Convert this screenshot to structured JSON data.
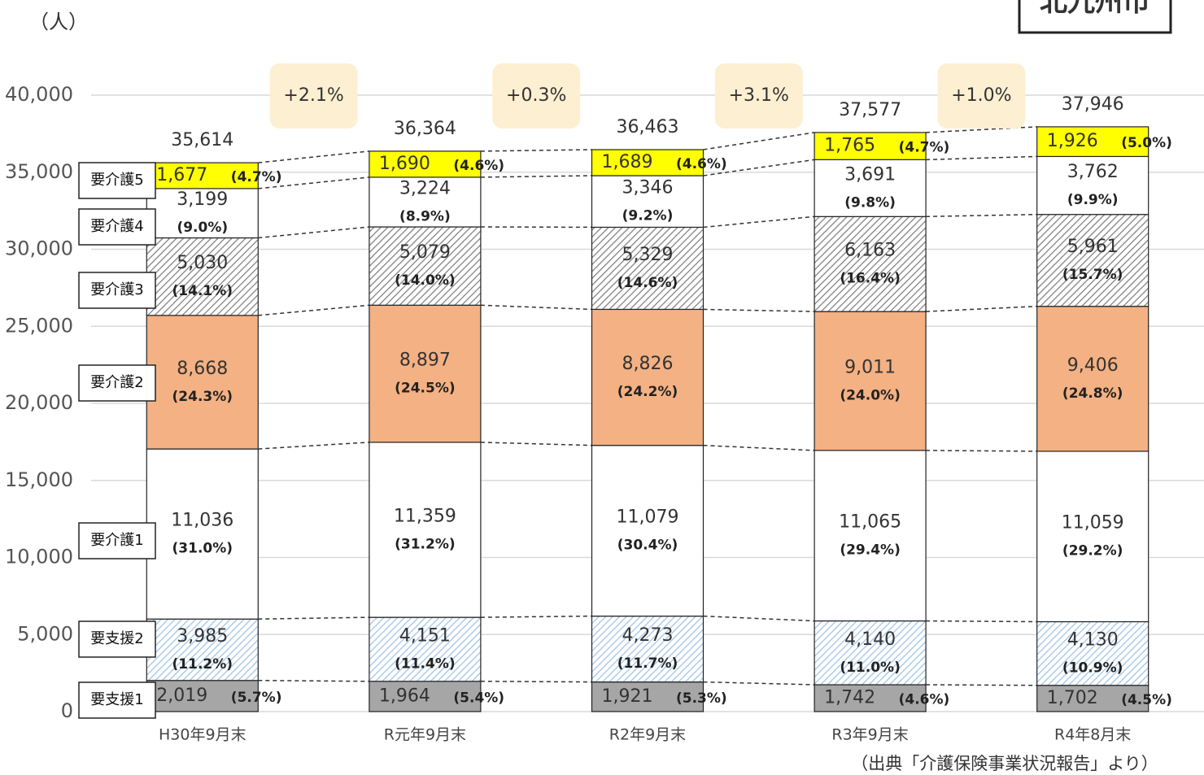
{
  "chart_data": {
    "type": "stacked_bar",
    "unit_label": "（人）",
    "region_label": "北九州市",
    "source": "（出典「介護保険事業状況報告」より）",
    "categories": [
      "H30年9月末",
      "R元年9月末",
      "R2年9月末",
      "R3年9月末",
      "R4年8月末"
    ],
    "ylim": [
      0,
      40000
    ],
    "yticks": [
      0,
      {
        "value": 5000,
        "label": "5,000"
      },
      {
        "value": 10000,
        "label": "10,000"
      },
      {
        "value": 15000,
        "label": "15,000"
      },
      {
        "value": 20000,
        "label": "20,000"
      },
      {
        "value": 25000,
        "label": "25,000"
      },
      {
        "value": 30000,
        "label": "30,000"
      },
      {
        "value": 35000,
        "label": "35,000"
      },
      {
        "value": 40000,
        "label": "40,000"
      }
    ],
    "grid": true,
    "series": [
      {
        "name": "要支援1",
        "color": "#a6a6a6",
        "values": [
          2019,
          1964,
          1921,
          1742,
          1702
        ],
        "value_labels": [
          "2,019",
          "1,964",
          "1,921",
          "1,742",
          "1,702"
        ],
        "share_labels": [
          "(5.7%)",
          "(5.4%)",
          "(5.3%)",
          "(4.6%)",
          "(4.5%)"
        ]
      },
      {
        "name": "要支援2",
        "color": "#9dc3e6",
        "hatch": true,
        "values": [
          3985,
          4151,
          4273,
          4140,
          4130
        ],
        "value_labels": [
          "3,985",
          "4,151",
          "4,273",
          "4,140",
          "4,130"
        ],
        "share_labels": [
          "(11.2%)",
          "(11.4%)",
          "(11.7%)",
          "(11.0%)",
          "(10.9%)"
        ]
      },
      {
        "name": "要介護1",
        "color": "#ffffff",
        "values": [
          11036,
          11359,
          11079,
          11065,
          11059
        ],
        "value_labels": [
          "11,036",
          "11,359",
          "11,079",
          "11,065",
          "11,059"
        ],
        "share_labels": [
          "(31.0%)",
          "(31.2%)",
          "(30.4%)",
          "(29.4%)",
          "(29.2%)"
        ]
      },
      {
        "name": "要介護2",
        "color": "#f4b183",
        "values": [
          8668,
          8897,
          8826,
          9011,
          9406
        ],
        "value_labels": [
          "8,668",
          "8,897",
          "8,826",
          "9,011",
          "9,406"
        ],
        "share_labels": [
          "(24.3%)",
          "(24.5%)",
          "(24.2%)",
          "(24.0%)",
          "(24.8%)"
        ]
      },
      {
        "name": "要介護3",
        "color": "#7f7f7f",
        "hatch": true,
        "values": [
          5030,
          5079,
          5329,
          6163,
          5961
        ],
        "value_labels": [
          "5,030",
          "5,079",
          "5,329",
          "6,163",
          "5,961"
        ],
        "share_labels": [
          "(14.1%)",
          "(14.0%)",
          "(14.6%)",
          "(16.4%)",
          "(15.7%)"
        ]
      },
      {
        "name": "要介護4",
        "color": "#ffffff",
        "values": [
          3199,
          3224,
          3346,
          3691,
          3762
        ],
        "value_labels": [
          "3,199",
          "3,224",
          "3,346",
          "3,691",
          "3,762"
        ],
        "share_labels": [
          "(9.0%)",
          "(8.9%)",
          "(9.2%)",
          "(9.8%)",
          "(9.9%)"
        ]
      },
      {
        "name": "要介護5",
        "color": "#ffff00",
        "values": [
          1677,
          1690,
          1689,
          1765,
          1926
        ],
        "value_labels": [
          "1,677",
          "1,690",
          "1,689",
          "1,765",
          "1,926"
        ],
        "share_labels": [
          "(4.7%)",
          "(4.6%)",
          "(4.6%)",
          "(4.7%)",
          "(5.0%)"
        ]
      }
    ],
    "totals": [
      35614,
      36364,
      36463,
      37577,
      37946
    ],
    "total_labels": [
      "35,614",
      "36,364",
      "36,463",
      "37,577",
      "37,946"
    ],
    "growth_labels": [
      "+2.1%",
      "+0.3%",
      "+3.1%",
      "+1.0%"
    ]
  }
}
